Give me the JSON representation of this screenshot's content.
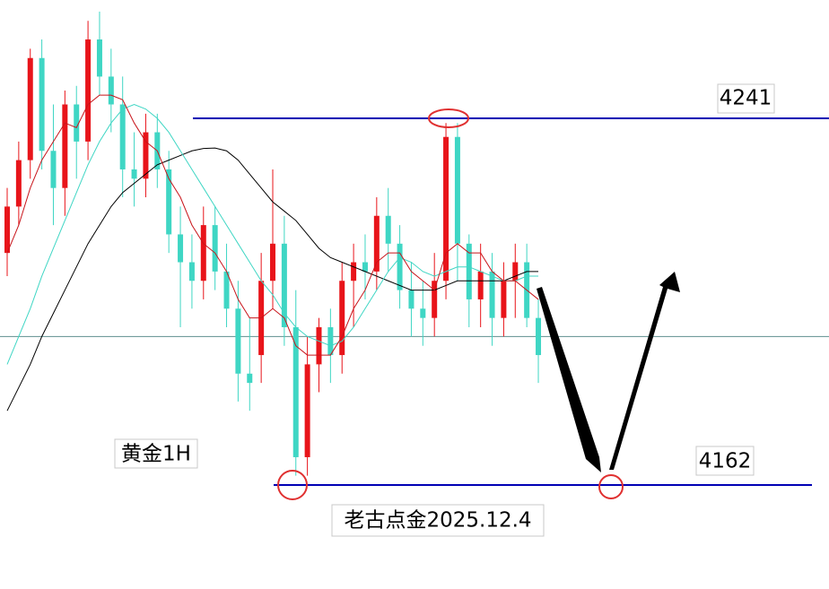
{
  "chart_data": {
    "type": "candlestick",
    "ylim": [
      4139.6,
      4266.5
    ],
    "up_color": "#e8141a",
    "down_color": "#3fd6c4",
    "open": [
      4212,
      4222,
      4232,
      4254,
      4234,
      4226,
      4244,
      4236,
      4258,
      4250,
      4244,
      4230,
      4228,
      4238,
      4230,
      4216,
      4210,
      4206,
      4218,
      4208,
      4200,
      4186,
      4190,
      4206,
      4214,
      4196,
      4168,
      4188,
      4196,
      4190,
      4206,
      4210,
      4208,
      4220,
      4214,
      4204,
      4200,
      4198,
      4206,
      4237,
      4214,
      4202,
      4208,
      4198,
      4206,
      4210,
      4198
    ],
    "high": [
      4226,
      4236,
      4256,
      4258,
      4244,
      4247,
      4248,
      4262,
      4264,
      4256,
      4250,
      4238,
      4242,
      4242,
      4234,
      4222,
      4216,
      4222,
      4222,
      4214,
      4206,
      4198,
      4212,
      4230,
      4220,
      4204,
      4194,
      4198,
      4200,
      4210,
      4214,
      4216,
      4224,
      4226,
      4218,
      4210,
      4206,
      4212,
      4240,
      4240,
      4216,
      4214,
      4212,
      4210,
      4214,
      4214,
      4202
    ],
    "low": [
      4207,
      4218,
      4228,
      4230,
      4218,
      4220,
      4228,
      4232,
      4246,
      4238,
      4224,
      4222,
      4224,
      4226,
      4212,
      4196,
      4200,
      4202,
      4204,
      4196,
      4180,
      4178,
      4184,
      4200,
      4192,
      4164,
      4164,
      4182,
      4184,
      4186,
      4196,
      4202,
      4204,
      4208,
      4200,
      4194,
      4192,
      4194,
      4202,
      4206,
      4196,
      4196,
      4192,
      4194,
      4198,
      4196,
      4184
    ],
    "close": [
      4222,
      4232,
      4254,
      4234,
      4226,
      4244,
      4236,
      4258,
      4250,
      4244,
      4230,
      4228,
      4238,
      4230,
      4216,
      4210,
      4206,
      4218,
      4208,
      4200,
      4186,
      4184,
      4206,
      4214,
      4196,
      4168,
      4188,
      4196,
      4190,
      4206,
      4210,
      4208,
      4220,
      4214,
      4204,
      4200,
      4198,
      4206,
      4237,
      4214,
      4202,
      4208,
      4198,
      4206,
      4210,
      4198,
      4190
    ],
    "lines": [
      {
        "color": "#000000",
        "values": [
          4178,
          4183,
          4188,
          4194,
          4199,
          4204,
          4209,
          4214,
          4218,
          4222,
          4225,
          4227,
          4229,
          4231,
          4232,
          4233,
          4234,
          4234.5,
          4234.6,
          4234,
          4232,
          4229,
          4226,
          4223,
          4221,
          4219,
          4216,
          4213,
          4211,
          4210,
          4209,
          4208,
          4207,
          4206,
          4205,
          4204,
          4204,
          4204,
          4205,
          4206,
          4206,
          4206,
          4206,
          4206,
          4207,
          4208,
          4208
        ]
      },
      {
        "color": "#3fd6c4",
        "values": [
          4188,
          4194,
          4200,
          4207,
          4213,
          4219,
          4225,
          4231,
          4236,
          4240,
          4243,
          4244,
          4243,
          4241,
          4238,
          4234,
          4230,
          4226,
          4222,
          4218,
          4214,
          4210,
          4206,
          4203,
          4199,
          4196,
          4194,
          4193,
          4192,
          4193,
          4196,
          4200,
          4204,
          4208,
          4211,
          4210,
          4208,
          4207,
          4208,
          4209,
          4209,
          4208,
          4207,
          4206,
          4206,
          4207,
          4207
        ]
      },
      {
        "color": "#c8141a",
        "values": [
          4212,
          4218,
          4226,
          4232,
          4236,
          4240,
          4239,
          4244,
          4246,
          4246,
          4245,
          4240,
          4236,
          4234,
          4228,
          4224,
          4218,
          4214,
          4212,
          4208,
          4202,
          4198,
          4198,
          4200,
          4198,
          4192,
          4190,
          4190,
          4190,
          4194,
          4200,
          4204,
          4210,
          4212,
          4212,
          4208,
          4206,
          4204,
          4212,
          4214,
          4212,
          4212,
          4208,
          4206,
          4206,
          4204,
          4202
        ]
      }
    ],
    "reference_line": 4194,
    "levels": [
      4241,
      4162
    ],
    "level_color": "#0000b4",
    "annotations": [
      "黄金1H",
      "老古点金2025.12.4"
    ]
  }
}
